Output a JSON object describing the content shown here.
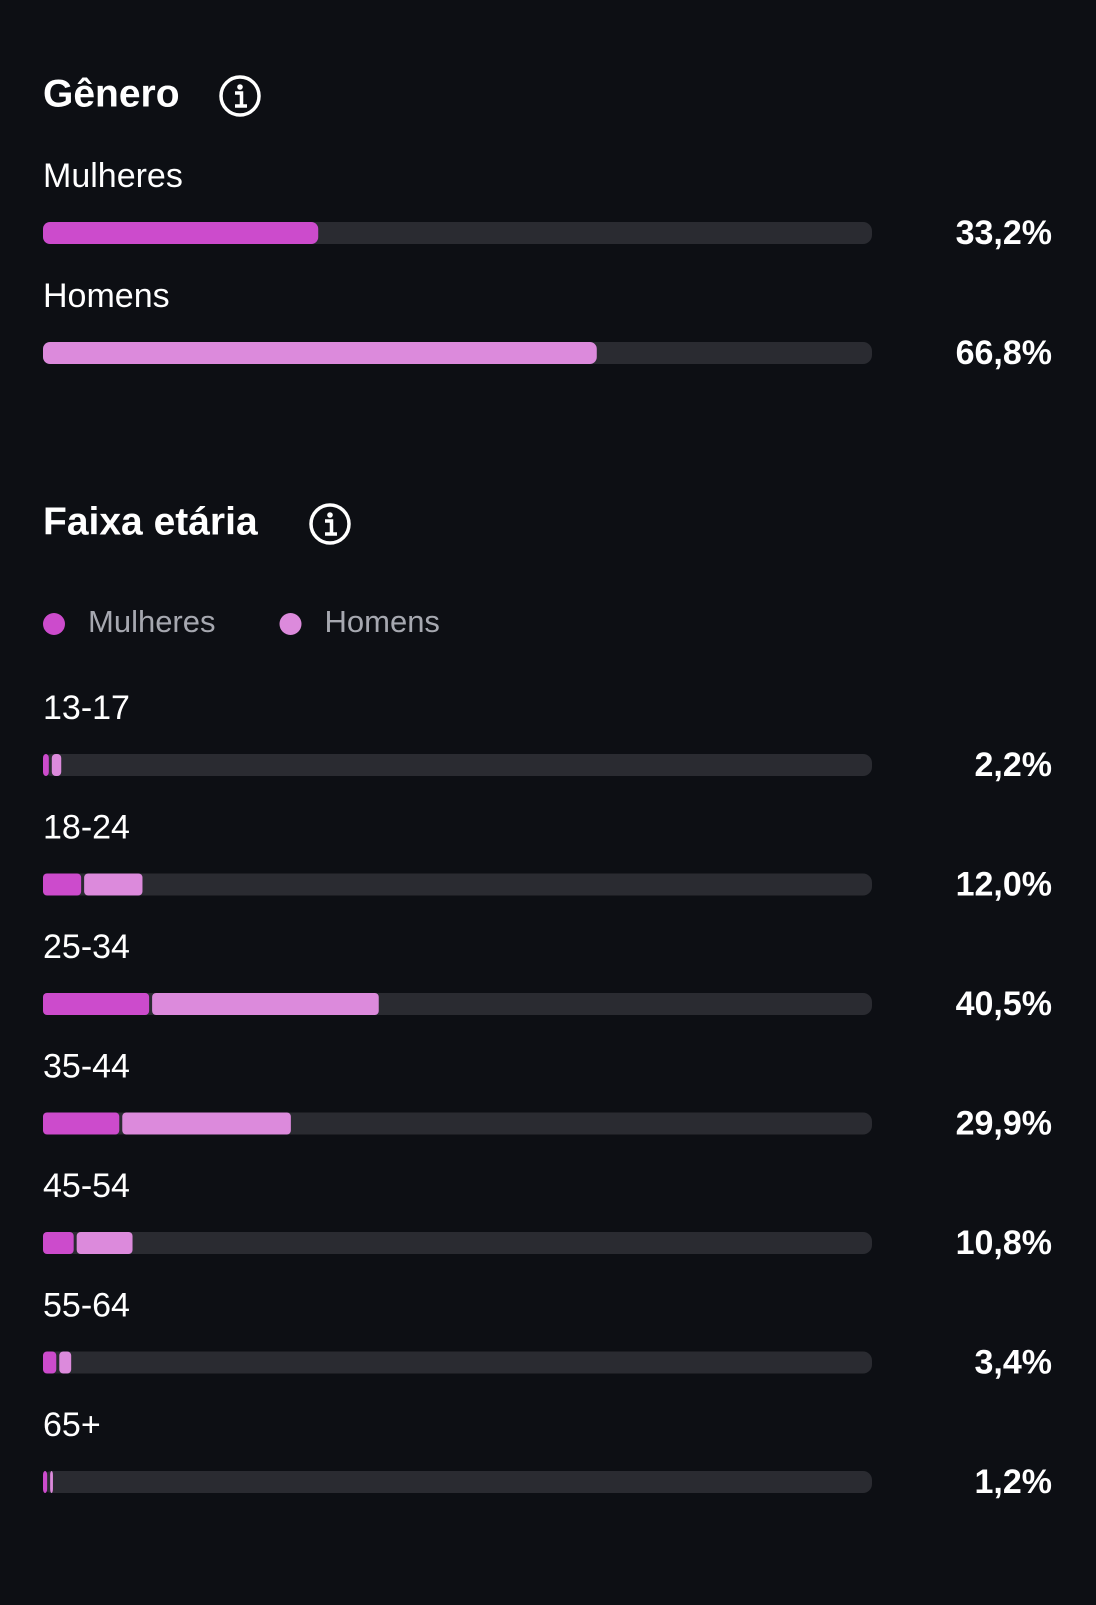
{
  "chart_data": [
    {
      "type": "bar",
      "orientation": "horizontal",
      "title": "Gênero",
      "categories": [
        "Mulheres",
        "Homens"
      ],
      "values": [
        33.2,
        66.8
      ],
      "value_labels": [
        "33,2%",
        "66,8%"
      ],
      "colors": [
        "#cc4bcc",
        "#dc8adc"
      ],
      "xlim": [
        0,
        100
      ]
    },
    {
      "type": "stacked_bar",
      "orientation": "horizontal",
      "title": "Faixa etária",
      "categories": [
        "13-17",
        "18-24",
        "25-34",
        "35-44",
        "45-54",
        "55-64",
        "65+"
      ],
      "series": [
        {
          "name": "Mulheres",
          "color": "#cc4bcc",
          "values": [
            0.7,
            4.6,
            12.8,
            9.2,
            3.7,
            1.6,
            0.5
          ]
        },
        {
          "name": "Homens",
          "color": "#dc8adc",
          "values": [
            1.5,
            7.4,
            27.7,
            20.7,
            7.1,
            1.8,
            0.7
          ]
        }
      ],
      "totals": [
        {
          "value": 2.2,
          "label": "2,2%"
        },
        {
          "value": 12.0,
          "label": "12,0%"
        },
        {
          "value": 40.5,
          "label": "40,5%"
        },
        {
          "value": 29.9,
          "label": "29,9%"
        },
        {
          "value": 10.8,
          "label": "10,8%"
        },
        {
          "value": 3.4,
          "label": "3,4%"
        },
        {
          "value": 1.2,
          "label": "1,2%"
        }
      ],
      "xlim": [
        0,
        100
      ],
      "legend": "top-left"
    }
  ]
}
